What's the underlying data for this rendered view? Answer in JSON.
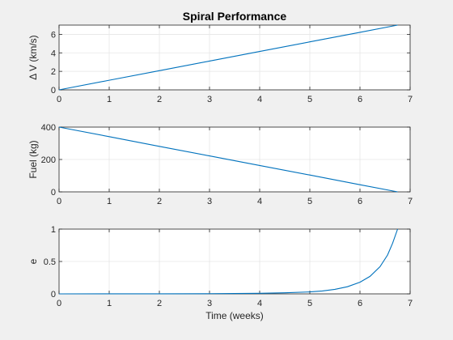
{
  "figure": {
    "background": "#f0f0f0",
    "axes_background": "#ffffff",
    "line_color": "#0072bd",
    "grid_color": "#e6e6e6",
    "axis_color": "#262626"
  },
  "chart_data": [
    {
      "type": "line",
      "title": "Spiral Performance",
      "xlabel": "",
      "ylabel": "Δ V (km/s)",
      "xlim": [
        0,
        7
      ],
      "ylim": [
        0,
        7
      ],
      "xticks": [
        0,
        1,
        2,
        3,
        4,
        5,
        6,
        7
      ],
      "yticks": [
        0,
        2,
        4,
        6
      ],
      "grid": true,
      "series": [
        {
          "x": [
            0,
            1,
            2,
            3,
            4,
            5,
            6,
            6.75
          ],
          "y": [
            0,
            1.04,
            2.07,
            3.11,
            4.15,
            5.19,
            6.22,
            7.0
          ]
        }
      ]
    },
    {
      "type": "line",
      "title": "",
      "xlabel": "",
      "ylabel": "Fuel (kg)",
      "xlim": [
        0,
        7
      ],
      "ylim": [
        0,
        400
      ],
      "xticks": [
        0,
        1,
        2,
        3,
        4,
        5,
        6,
        7
      ],
      "yticks": [
        0,
        200,
        400
      ],
      "grid": true,
      "series": [
        {
          "x": [
            0,
            1,
            2,
            3,
            4,
            5,
            6,
            6.75
          ],
          "y": [
            400,
            341,
            281,
            222,
            163,
            104,
            44,
            0
          ]
        }
      ]
    },
    {
      "type": "line",
      "title": "",
      "xlabel": "Time (weeks)",
      "ylabel": "e",
      "xlim": [
        0,
        7
      ],
      "ylim": [
        0,
        1
      ],
      "xticks": [
        0,
        1,
        2,
        3,
        4,
        5,
        6,
        7
      ],
      "yticks": [
        0,
        0.5,
        1
      ],
      "grid": true,
      "series": [
        {
          "x": [
            0,
            1,
            2,
            3,
            3.5,
            4,
            4.5,
            5,
            5.25,
            5.5,
            5.75,
            6,
            6.2,
            6.4,
            6.55,
            6.65,
            6.75
          ],
          "y": [
            0,
            0.0005,
            0.001,
            0.003,
            0.005,
            0.009,
            0.016,
            0.03,
            0.045,
            0.07,
            0.11,
            0.18,
            0.27,
            0.42,
            0.6,
            0.78,
            1.0
          ]
        }
      ]
    }
  ]
}
